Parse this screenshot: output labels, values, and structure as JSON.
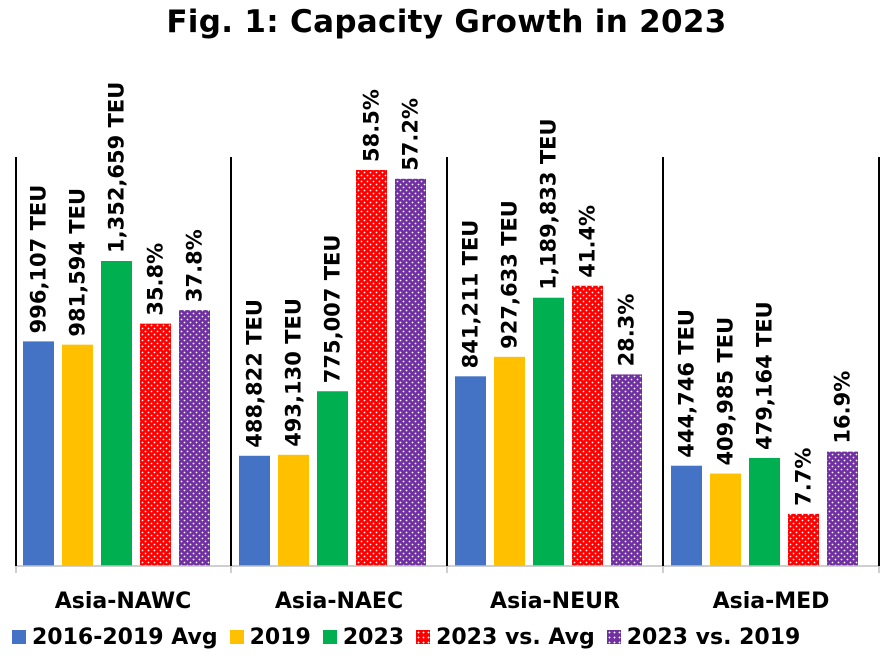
{
  "chart_data": {
    "type": "bar",
    "title": "Fig. 1: Capacity Growth in 2023",
    "categories": [
      "Asia-NAWC",
      "Asia-NAEC",
      "Asia-NEUR",
      "Asia-MED"
    ],
    "series": [
      {
        "name": "2016-2019 Avg",
        "color": "#4472C4",
        "pattern": "solid",
        "values": [
          996107,
          488822,
          841211,
          444746
        ],
        "labels": [
          "996,107 TEU",
          "488,822 TEU",
          "841,211 TEU",
          "444,746 TEU"
        ]
      },
      {
        "name": "2019",
        "color": "#FFC000",
        "pattern": "solid",
        "values": [
          981594,
          493130,
          927633,
          409985
        ],
        "labels": [
          "981,594 TEU",
          "493,130 TEU",
          "927,633 TEU",
          "409,985 TEU"
        ]
      },
      {
        "name": "2023",
        "color": "#00B050",
        "pattern": "solid",
        "values": [
          1352659,
          775007,
          1189833,
          479164
        ],
        "labels": [
          "1,352,659 TEU",
          "775,007 TEU",
          "1,189,833 TEU",
          "479,164 TEU"
        ]
      },
      {
        "name": "2023 vs. Avg",
        "color": "#FF0000",
        "pattern": "dots",
        "values": [
          35.8,
          58.5,
          41.4,
          7.7
        ],
        "labels": [
          "35.8%",
          "58.5%",
          "41.4%",
          "7.7%"
        ]
      },
      {
        "name": "2023 vs. 2019",
        "color": "#7030A0",
        "pattern": "dots",
        "values": [
          37.8,
          57.2,
          28.3,
          16.9
        ],
        "labels": [
          "37.8%",
          "57.2%",
          "28.3%",
          "16.9%"
        ]
      }
    ],
    "legend_position": "bottom",
    "grid": false
  }
}
